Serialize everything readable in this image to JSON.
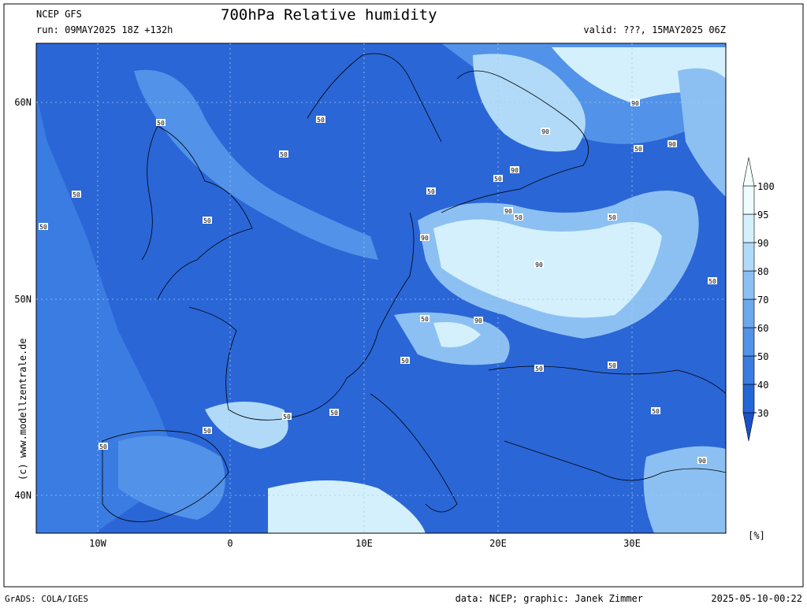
{
  "header": {
    "model": "NCEP GFS",
    "title": "700hPa Relative humidity",
    "run": "run: 09MAY2025 18Z +132h",
    "valid": "valid: ???, 15MAY2025 06Z"
  },
  "map": {
    "lat_labels": [
      "60N",
      "50N",
      "40N"
    ],
    "lon_labels": [
      "10W",
      "0",
      "10E",
      "20E",
      "30E"
    ],
    "side_text": "(c) www.modellzentrale.de",
    "contour_labels": [
      "50",
      "50",
      "50",
      "50",
      "50",
      "50",
      "50",
      "50",
      "90",
      "90",
      "90",
      "90",
      "90",
      "50",
      "90",
      "90",
      "50",
      "50",
      "50",
      "50",
      "50",
      "50",
      "50",
      "90",
      "50",
      "50",
      "50",
      "90",
      "50",
      "50"
    ]
  },
  "colorbar": {
    "levels": [
      30,
      40,
      50,
      60,
      70,
      80,
      90,
      95,
      100
    ],
    "colors": [
      "#1a50c8",
      "#2266d8",
      "#3a7ce2",
      "#5292e8",
      "#6ca8ee",
      "#8cc0f2",
      "#b0daf8",
      "#d4f0fc",
      "#ecfcff",
      "#f6ffff"
    ],
    "unit": "[%]"
  },
  "footer": {
    "software": "GrADS: COLA/IGES",
    "credit": "data: NCEP; graphic: Janek Zimmer",
    "timestamp": "2025-05-10-00:22"
  }
}
